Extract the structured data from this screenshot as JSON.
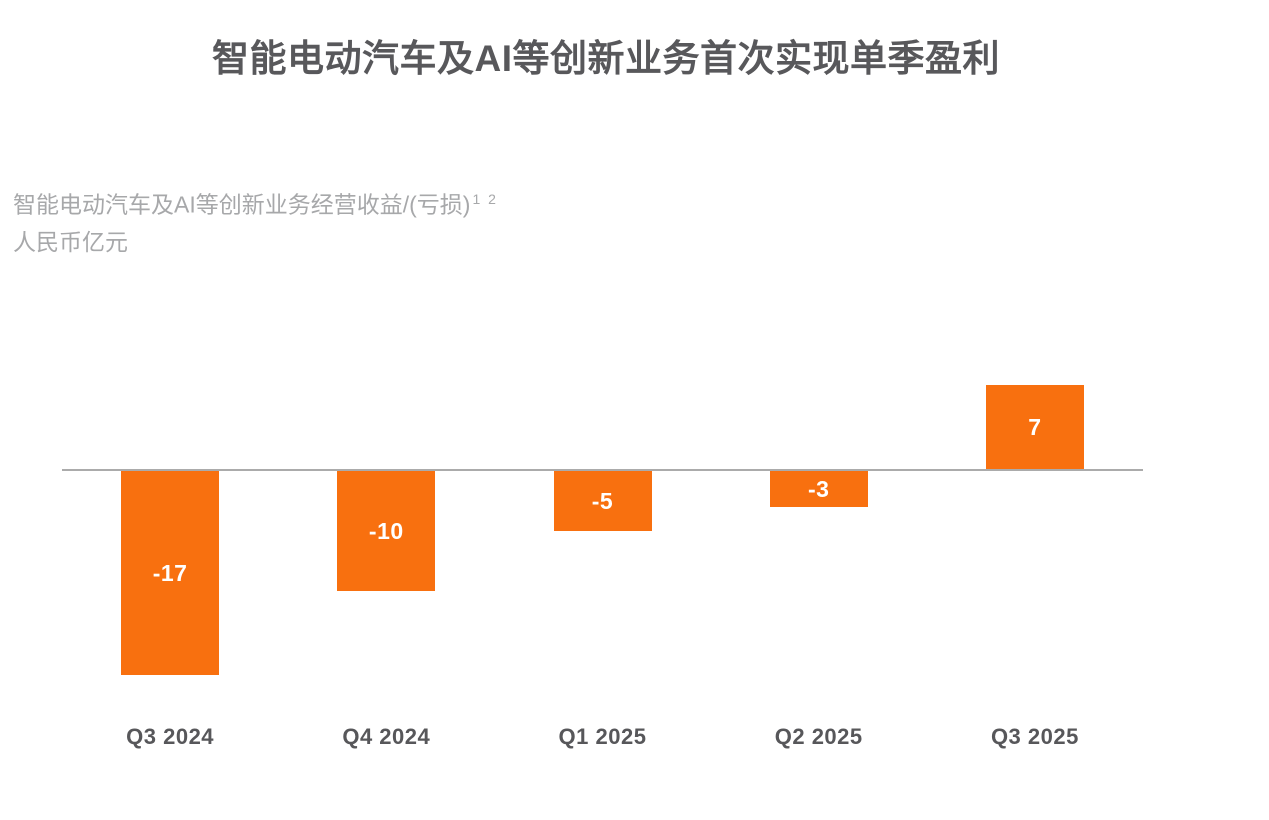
{
  "title": "智能电动汽车及AI等创新业务首次实现单季盈利",
  "subtitle": {
    "line1_main": "智能电动汽车及AI等创新业务经营收益/(亏损)",
    "line1_superscript": "1 2",
    "line2": "人民币亿元"
  },
  "chart_data": {
    "type": "bar",
    "title": "智能电动汽车及AI等创新业务首次实现单季盈利",
    "subtitle": "智能电动汽车及AI等创新业务经营收益/(亏损)1 2",
    "unit_label": "人民币亿元",
    "categories": [
      "Q3 2024",
      "Q4 2024",
      "Q1 2025",
      "Q2 2025",
      "Q3 2025"
    ],
    "values": [
      -17,
      -10,
      -5,
      -3,
      7
    ],
    "data_labels": [
      "-17",
      "-10",
      "-5",
      "-3",
      "7"
    ],
    "baseline": 0,
    "ylim": [
      -17,
      7
    ],
    "grid": false,
    "legend": "none",
    "bar_color": "#F8700F",
    "bar_label_color": "#FFFFFF",
    "axis_line_color": "#ABABAB",
    "title_color": "#58585B",
    "subtitle_color": "#A7A8AA",
    "category_label_color": "#57575A"
  }
}
